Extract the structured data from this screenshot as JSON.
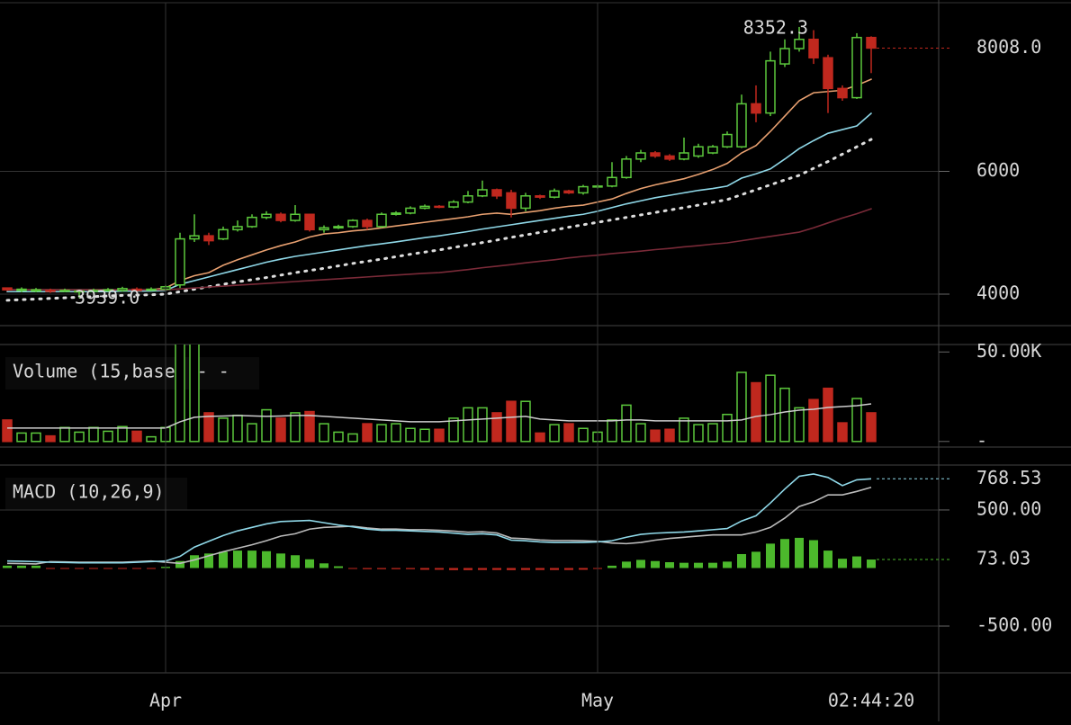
{
  "chart_data": [
    {
      "type": "candlestick",
      "up_color": "#5cc83c",
      "down_color": "#c0281e",
      "open": [
        4100,
        4060,
        4050,
        4060,
        4050,
        4040,
        4050,
        4060,
        4060,
        4080,
        4070,
        4080,
        4150,
        4900,
        4950,
        4900,
        5050,
        5100,
        5250,
        5300,
        5200,
        5300,
        5050,
        5080,
        5100,
        5200,
        5100,
        5300,
        5320,
        5400,
        5430,
        5420,
        5500,
        5600,
        5700,
        5650,
        5400,
        5600,
        5580,
        5680,
        5650,
        5750,
        5760,
        5900,
        6200,
        6300,
        6250,
        6200,
        6250,
        6300,
        6400,
        6400,
        7100,
        6950,
        7750,
        8000,
        8150,
        7850,
        7350,
        7200,
        8180
      ],
      "high": [
        4110,
        4110,
        4100,
        4090,
        4090,
        4070,
        4090,
        4100,
        4120,
        4110,
        4110,
        4150,
        5000,
        5300,
        5000,
        5100,
        5200,
        5300,
        5350,
        5330,
        5450,
        5310,
        5120,
        5130,
        5220,
        5230,
        5330,
        5350,
        5430,
        5460,
        5450,
        5530,
        5680,
        5850,
        5720,
        5700,
        5650,
        5620,
        5720,
        5700,
        5780,
        5790,
        6150,
        6250,
        6350,
        6330,
        6280,
        6550,
        6450,
        6430,
        6650,
        7250,
        7400,
        7950,
        8150,
        8352.3,
        8300,
        7900,
        7400,
        8250,
        8200
      ],
      "low": [
        4050,
        4030,
        4030,
        4020,
        4030,
        3939,
        4020,
        4040,
        4040,
        4030,
        4050,
        4060,
        4100,
        4850,
        4800,
        4880,
        5020,
        5080,
        5220,
        5170,
        5180,
        5020,
        5000,
        5060,
        5080,
        5050,
        5080,
        5280,
        5300,
        5380,
        5400,
        5400,
        5480,
        5580,
        5550,
        5250,
        5350,
        5550,
        5560,
        5630,
        5620,
        5720,
        5740,
        5880,
        6150,
        6220,
        6170,
        6180,
        6220,
        6280,
        6380,
        6380,
        6800,
        6900,
        7700,
        7950,
        7750,
        6950,
        7150,
        7180,
        7600
      ],
      "close": [
        4070,
        4080,
        4070,
        4050,
        4060,
        4050,
        4060,
        4070,
        4090,
        4060,
        4080,
        4120,
        4900,
        4950,
        4870,
        5050,
        5100,
        5250,
        5300,
        5200,
        5300,
        5050,
        5080,
        5100,
        5200,
        5100,
        5300,
        5320,
        5400,
        5430,
        5420,
        5500,
        5600,
        5700,
        5600,
        5400,
        5600,
        5580,
        5680,
        5650,
        5750,
        5760,
        5900,
        6200,
        6300,
        6250,
        6200,
        6300,
        6400,
        6400,
        6600,
        7100,
        6950,
        7800,
        8000,
        8150,
        7850,
        7350,
        7200,
        8180,
        8008
      ],
      "lines": [
        {
          "color": "#e8a070",
          "dash": "solid",
          "values": [
            4070,
            4070,
            4070,
            4070,
            4070,
            4070,
            4070,
            4070,
            4070,
            4070,
            4070,
            4100,
            4220,
            4300,
            4350,
            4470,
            4560,
            4640,
            4720,
            4790,
            4850,
            4930,
            4980,
            5000,
            5030,
            5050,
            5080,
            5110,
            5140,
            5170,
            5200,
            5230,
            5260,
            5300,
            5320,
            5300,
            5330,
            5360,
            5400,
            5430,
            5450,
            5500,
            5550,
            5640,
            5720,
            5780,
            5830,
            5880,
            5950,
            6030,
            6130,
            6300,
            6420,
            6650,
            6900,
            7150,
            7280,
            7300,
            7320,
            7400,
            7500
          ]
        },
        {
          "color": "#8fd8e8",
          "dash": "solid",
          "values": [
            4040,
            4040,
            4040,
            4040,
            4040,
            4040,
            4040,
            4040,
            4050,
            4050,
            4050,
            4060,
            4160,
            4220,
            4280,
            4340,
            4400,
            4460,
            4520,
            4570,
            4615,
            4650,
            4685,
            4720,
            4755,
            4790,
            4820,
            4850,
            4885,
            4920,
            4950,
            4985,
            5020,
            5060,
            5095,
            5130,
            5165,
            5200,
            5235,
            5270,
            5300,
            5350,
            5410,
            5470,
            5520,
            5570,
            5610,
            5650,
            5690,
            5720,
            5760,
            5890,
            5960,
            6040,
            6200,
            6370,
            6500,
            6620,
            6680,
            6740,
            6945
          ]
        },
        {
          "color": "#dddddd",
          "dash": "dotted",
          "values": [
            3900,
            3910,
            3920,
            3930,
            3940,
            3950,
            3960,
            3970,
            3980,
            3985,
            3990,
            4000,
            4040,
            4080,
            4120,
            4160,
            4200,
            4235,
            4270,
            4310,
            4350,
            4385,
            4420,
            4460,
            4500,
            4535,
            4570,
            4610,
            4650,
            4685,
            4720,
            4760,
            4800,
            4840,
            4880,
            4925,
            4965,
            5005,
            5045,
            5090,
            5130,
            5170,
            5210,
            5250,
            5290,
            5330,
            5370,
            5410,
            5450,
            5495,
            5540,
            5620,
            5700,
            5780,
            5860,
            5935,
            6050,
            6160,
            6280,
            6400,
            6520
          ]
        },
        {
          "color": "#7a2a38",
          "dash": "solid",
          "values": [
            4070,
            4070,
            4070,
            4070,
            4070,
            4070,
            4070,
            4070,
            4070,
            4070,
            4070,
            4070,
            4085,
            4100,
            4115,
            4130,
            4145,
            4160,
            4175,
            4190,
            4205,
            4220,
            4235,
            4250,
            4265,
            4280,
            4295,
            4310,
            4325,
            4340,
            4350,
            4375,
            4400,
            4430,
            4455,
            4480,
            4510,
            4535,
            4560,
            4590,
            4615,
            4635,
            4660,
            4680,
            4700,
            4725,
            4745,
            4770,
            4790,
            4815,
            4835,
            4870,
            4905,
            4940,
            4975,
            5010,
            5080,
            5160,
            5240,
            5310,
            5390
          ]
        }
      ],
      "annotations": [
        {
          "value": 8352.3,
          "label": "8352.3"
        },
        {
          "value": 3939,
          "label": "3939.0"
        },
        {
          "value": 8008,
          "label": "8008.0"
        }
      ],
      "ylim": [
        3487,
        8791
      ],
      "yticks": [
        4000,
        6000
      ],
      "grid": true
    },
    {
      "type": "volume",
      "title": "Volume (15,base) - -",
      "values": [
        12000,
        4700,
        4700,
        3100,
        7800,
        5200,
        7800,
        5700,
        8300,
        5700,
        2600,
        7800,
        54700,
        54700,
        16000,
        13000,
        14600,
        9900,
        17700,
        13000,
        16000,
        16700,
        9900,
        5200,
        4200,
        9900,
        9400,
        9900,
        7300,
        6800,
        6800,
        13000,
        18800,
        18800,
        16000,
        22400,
        22400,
        4700,
        9400,
        9900,
        7300,
        5200,
        12000,
        20300,
        9900,
        6300,
        6800,
        13000,
        9400,
        9900,
        15100,
        38600,
        32800,
        37000,
        29700,
        18800,
        23400,
        29700,
        10400,
        24000,
        16000
      ],
      "average": {
        "color": "#cccccc",
        "values": [
          7500,
          7500,
          7500,
          7500,
          7500,
          7500,
          7500,
          7500,
          7500,
          7500,
          7500,
          7500,
          11000,
          13500,
          14000,
          14200,
          14500,
          14300,
          14000,
          14200,
          14500,
          14500,
          14000,
          13500,
          13000,
          12500,
          12000,
          11500,
          11000,
          11000,
          11000,
          11500,
          12000,
          12500,
          13000,
          13500,
          14000,
          12500,
          12000,
          11500,
          11500,
          11500,
          11500,
          12000,
          12000,
          11500,
          11500,
          11500,
          11500,
          11500,
          11500,
          12000,
          14000,
          15000,
          16500,
          17500,
          18000,
          19000,
          19500,
          20000,
          21000
        ]
      },
      "ylim": [
        -3125,
        54170
      ],
      "yticks": [
        {
          "value": 50000,
          "label": "50.00K"
        },
        {
          "value": 0,
          "label": "-"
        }
      ],
      "grid": false
    },
    {
      "type": "macd",
      "title": "MACD (10,26,9)",
      "categories": [
        null,
        null,
        null,
        null,
        null,
        null,
        null,
        null,
        null,
        null,
        null,
        "Apr",
        null,
        null,
        null,
        null,
        null,
        null,
        null,
        null,
        null,
        null,
        null,
        null,
        null,
        null,
        null,
        null,
        null,
        null,
        null,
        null,
        null,
        null,
        null,
        null,
        null,
        null,
        null,
        null,
        null,
        "May",
        null,
        null,
        null,
        null,
        null,
        null,
        null,
        null,
        null,
        null,
        null,
        null,
        null,
        null,
        null,
        null,
        null,
        null,
        null
      ],
      "time_label": "02:44:20",
      "macd": {
        "color": "#8fd8e8",
        "values": [
          60,
          58,
          55,
          50,
          48,
          45,
          45,
          45,
          45,
          50,
          55,
          60,
          100,
          180,
          230,
          280,
          320,
          350,
          380,
          400,
          405,
          410,
          390,
          370,
          355,
          335,
          325,
          325,
          320,
          315,
          310,
          300,
          290,
          295,
          285,
          240,
          235,
          225,
          220,
          220,
          220,
          225,
          235,
          265,
          290,
          300,
          305,
          310,
          320,
          330,
          340,
          405,
          450,
          560,
          680,
          790,
          810,
          780,
          710,
          760,
          768.53
        ]
      },
      "signal": {
        "color": "#bbbbbb",
        "values": [
          40,
          38,
          35,
          55,
          53,
          50,
          50,
          50,
          50,
          55,
          60,
          50,
          40,
          70,
          105,
          140,
          170,
          200,
          235,
          275,
          295,
          335,
          350,
          355,
          360,
          345,
          335,
          335,
          330,
          330,
          325,
          318,
          308,
          312,
          302,
          258,
          252,
          242,
          237,
          237,
          235,
          230,
          215,
          210,
          220,
          240,
          255,
          265,
          275,
          285,
          285,
          285,
          310,
          350,
          430,
          530,
          570,
          630,
          630,
          660,
          695.5
        ]
      },
      "histogram": {
        "up_color": "#4cb82c",
        "down_color": "#c0281e",
        "values": [
          20,
          20,
          20,
          -5,
          -5,
          -5,
          -5,
          -5,
          -5,
          -5,
          -5,
          10,
          60,
          110,
          125,
          140,
          150,
          150,
          145,
          125,
          110,
          75,
          40,
          15,
          -5,
          -10,
          -10,
          -10,
          -10,
          -15,
          -15,
          -18,
          -18,
          -17,
          -17,
          -18,
          -17,
          -17,
          -17,
          -17,
          -15,
          -5,
          20,
          55,
          70,
          60,
          50,
          45,
          45,
          45,
          55,
          120,
          140,
          210,
          250,
          260,
          240,
          150,
          80,
          100,
          73.03
        ]
      },
      "annotations": [
        {
          "value": 768.53,
          "label": "768.53"
        },
        {
          "value": 73.03,
          "label": "73.03"
        }
      ],
      "ylim": [
        -903,
        887
      ],
      "yticks": [
        {
          "value": 500,
          "label": "500.00"
        },
        {
          "value": -500,
          "label": "-500.00"
        }
      ],
      "grid": true
    }
  ]
}
